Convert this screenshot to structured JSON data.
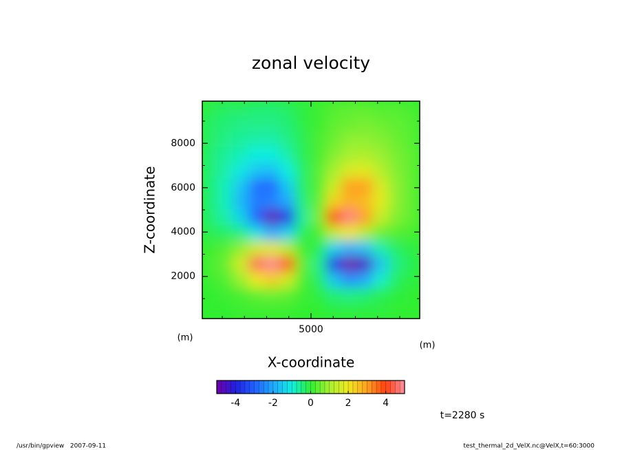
{
  "chart_data": {
    "type": "heatmap",
    "title": "zonal velocity",
    "x_label": "X-coordinate",
    "y_label": "Z-coordinate",
    "x_unit": "(m)",
    "y_unit": "(m)",
    "time_label": "t=2280 s",
    "footer_left": "/usr/bin/gpview   2007-09-11",
    "footer_right": "test_thermal_2d_VelX.nc@VelX,t=60:3000",
    "xlim": [
      100,
      9900
    ],
    "ylim": [
      100,
      9900
    ],
    "xticks": [
      5000
    ],
    "yticks": [
      2000,
      4000,
      6000,
      8000
    ],
    "xminor_ticks": [
      1000,
      2000,
      3000,
      4000,
      6000,
      7000,
      8000,
      9000
    ],
    "yminor_ticks": [
      1000,
      3000,
      5000,
      7000,
      9000
    ],
    "x": [
      450,
      1150,
      1850,
      2550,
      3250,
      3950,
      4650,
      5350,
      6050,
      6750,
      7450,
      8150,
      8850,
      9550
    ],
    "y": [
      9550,
      8850,
      8150,
      7450,
      6750,
      6050,
      5350,
      4650,
      3950,
      3250,
      2550,
      1850,
      1150,
      450
    ],
    "values": [
      [
        -0.2,
        -0.3,
        -0.3,
        -0.4,
        -0.4,
        -0.3,
        -0.1,
        0.1,
        0.3,
        0.4,
        0.4,
        0.3,
        0.3,
        0.2
      ],
      [
        -0.3,
        -0.4,
        -0.5,
        -0.5,
        -0.5,
        -0.4,
        -0.1,
        0.1,
        0.4,
        0.5,
        0.6,
        0.5,
        0.4,
        0.3
      ],
      [
        -0.3,
        -0.5,
        -0.6,
        -0.7,
        -0.7,
        -0.5,
        -0.2,
        0.2,
        0.5,
        0.8,
        0.8,
        0.7,
        0.5,
        0.3
      ],
      [
        -0.4,
        -0.6,
        -0.8,
        -1.0,
        -1.0,
        -0.7,
        -0.2,
        0.2,
        0.7,
        1.0,
        1.1,
        0.9,
        0.6,
        0.4
      ],
      [
        -0.4,
        -0.7,
        -1.1,
        -1.6,
        -1.7,
        -1.0,
        -0.3,
        0.3,
        1.0,
        1.7,
        1.8,
        1.2,
        0.7,
        0.4
      ],
      [
        -0.4,
        -0.8,
        -1.6,
        -2.8,
        -2.9,
        -1.5,
        -0.3,
        0.3,
        1.5,
        3.0,
        3.0,
        1.7,
        0.8,
        0.4
      ],
      [
        -0.4,
        -0.8,
        -1.8,
        -2.6,
        -2.5,
        -2.0,
        -0.4,
        0.4,
        2.3,
        2.8,
        2.6,
        1.8,
        0.8,
        0.4
      ],
      [
        -0.4,
        -0.7,
        -1.4,
        -3.0,
        -4.8,
        -3.8,
        -0.6,
        0.6,
        4.0,
        4.8,
        3.0,
        1.4,
        0.7,
        0.4
      ],
      [
        -0.2,
        -0.3,
        -0.5,
        -1.2,
        -2.0,
        -1.4,
        -0.2,
        0.2,
        1.4,
        2.0,
        1.2,
        0.5,
        0.3,
        0.2
      ],
      [
        0.1,
        0.3,
        0.8,
        1.6,
        1.8,
        1.2,
        0.1,
        -0.2,
        -1.4,
        -1.9,
        -1.6,
        -0.7,
        -0.3,
        -0.1
      ],
      [
        0.2,
        0.5,
        1.6,
        4.5,
        4.9,
        3.8,
        0.4,
        -0.5,
        -3.8,
        -5.0,
        -4.5,
        -1.6,
        -0.5,
        -0.2
      ],
      [
        0.1,
        0.3,
        0.9,
        2.0,
        2.4,
        1.6,
        0.2,
        -0.3,
        -1.6,
        -2.4,
        -2.0,
        -0.9,
        -0.3,
        -0.1
      ],
      [
        0,
        0.1,
        0.2,
        0.4,
        0.5,
        0.4,
        0.1,
        -0.1,
        -0.4,
        -0.5,
        -0.4,
        -0.2,
        -0.1,
        0
      ],
      [
        0,
        0,
        0.1,
        0.1,
        0.1,
        0.1,
        0,
        0,
        -0.1,
        -0.1,
        -0.1,
        -0.1,
        0,
        0
      ]
    ],
    "clim": [
      -5,
      5
    ],
    "cticks": [
      -4,
      -2,
      0,
      2,
      4
    ],
    "colormap": [
      "#7000a8",
      "#2020e0",
      "#2060ff",
      "#20a8ff",
      "#10eee0",
      "#30ee30",
      "#a8f030",
      "#f0e820",
      "#ffa020",
      "#ff4010",
      "#ff90a0"
    ]
  }
}
